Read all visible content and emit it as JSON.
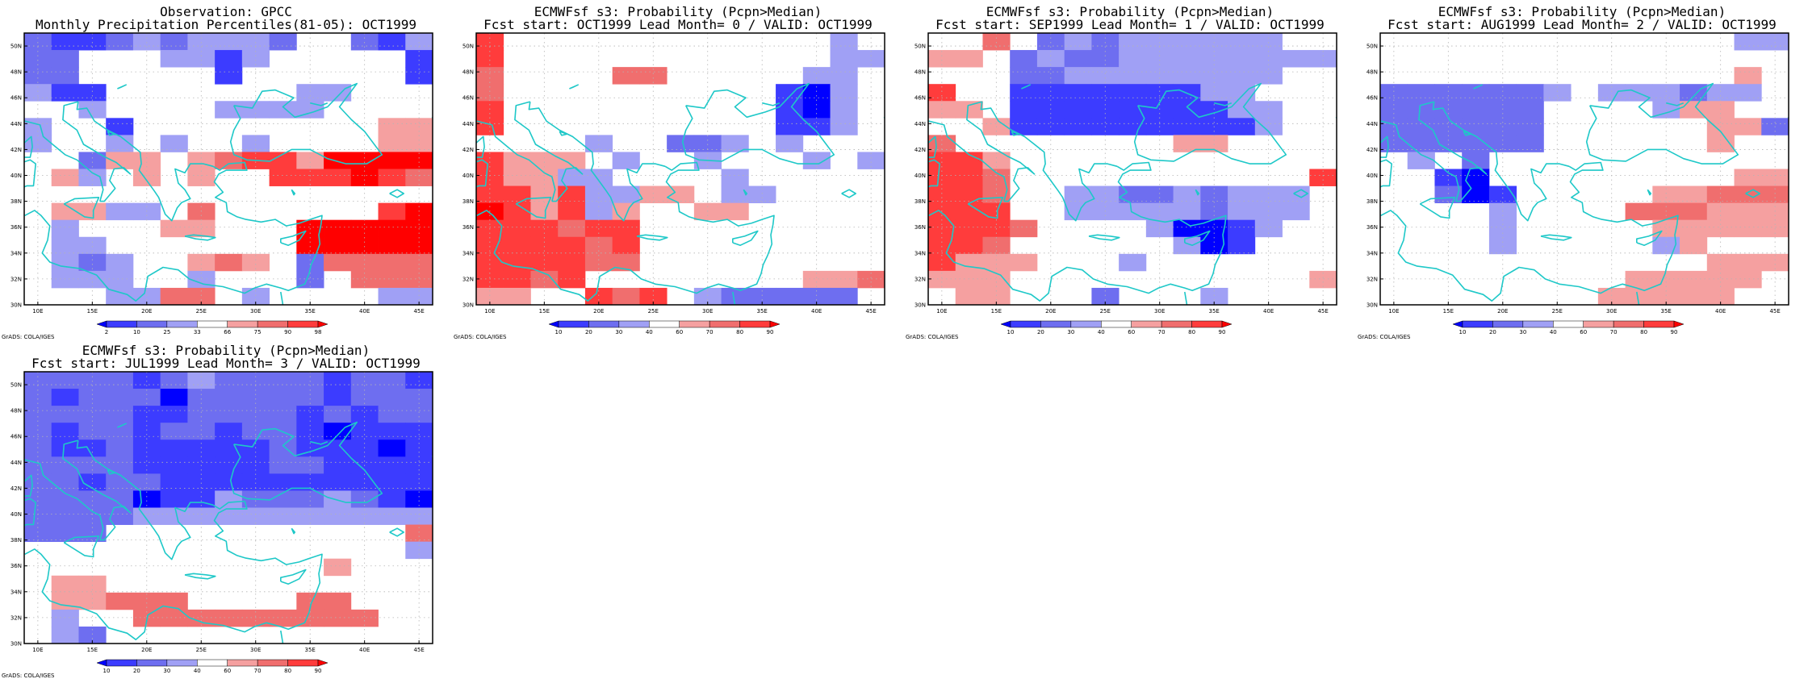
{
  "window": {
    "credit_label": "GrADS: COLA/IGES"
  },
  "axes": {
    "lat_labels": [
      "30N",
      "32N",
      "34N",
      "36N",
      "38N",
      "40N",
      "42N",
      "44N",
      "46N",
      "48N",
      "50N"
    ],
    "lon_labels": [
      "10E",
      "15E",
      "20E",
      "25E",
      "30E",
      "35E",
      "40E",
      "45E"
    ]
  },
  "colors": {
    "coast": "#1ec8c8",
    "gridline": "#b4b4b4",
    "palette": [
      "#0000ff",
      "#3c3cff",
      "#6e6ef0",
      "#a0a0f5",
      "#ffffff",
      "#f5a0a0",
      "#f06e6e",
      "#ff3c3c",
      "#ff0000"
    ]
  },
  "panels": [
    {
      "id": "observation",
      "title_line1": "Observation: GPCC",
      "title_line2": "Monthly Precipitation Percentiles(81-05): OCT1999",
      "colorbar_labels": [
        "2",
        "10",
        "25",
        "33",
        "66",
        "75",
        "90",
        "98"
      ],
      "grid": [
        "211232333244213",
        "224443313444441",
        "224444414444441",
        "311444444433444",
        "443444433334444",
        "344144444444455",
        "344343443444455",
        "442554567758888",
        "453454544777876",
        "444444444444444",
        "455334644444478",
        "434445544488888",
        "433444444488888",
        "432344565426666",
        "433344344424666",
        "444336643444433"
      ]
    },
    {
      "id": "lead0",
      "title_line1": "ECMWFsf s3: Probability (Pcpn>Median)",
      "title_line2": "Fcst start: OCT1999  Lead Month= 0 / VALID: OCT1999",
      "colorbar_labels": [
        "10",
        "20",
        "30",
        "40",
        "60",
        "70",
        "80",
        "90"
      ],
      "grid": [
        "744444444444434",
        "744444444444433",
        "644446644444334",
        "644444444441034",
        "744444444441034",
        "744444444441134",
        "444434422343444",
        "755543443444343",
        "755334444344444",
        "775733554334444",
        "875735445544444",
        "777677444444444",
        "777767444444444",
        "777766444444444",
        "776744444444556",
        "554476743222224"
      ]
    },
    {
      "id": "lead1",
      "title_line1": "ECMWFsf s3: Probability (Pcpn>Median)",
      "title_line2": "Fcst start: SEP1999  Lead Month= 1 / VALID: OCT1999",
      "colorbar_labels": [
        "10",
        "20",
        "30",
        "40",
        "60",
        "70",
        "80",
        "90"
      ],
      "grid": [
        "446423233333344",
        "554232233333333",
        "444223333333344",
        "744111111133444",
        "554111111113344",
        "445111111111344",
        "644444444554444",
        "775444444444444",
        "776444444444447",
        "776443322323334",
        "777443333323334",
        "777644443001344",
        "776444444301444",
        "755544434444444",
        "555444444444445",
        "455444244434444"
      ]
    },
    {
      "id": "lead2",
      "title_line1": "ECMWFsf s3: Probability (Pcpn>Median)",
      "title_line2": "Fcst start: AUG1999  Lead Month= 2 / VALID: OCT1999",
      "colorbar_labels": [
        "10",
        "20",
        "30",
        "40",
        "60",
        "70",
        "80",
        "90"
      ],
      "grid": [
        "444444444444433",
        "444444444444444",
        "444444444444454",
        "222222343332334",
        "222222444435544",
        "222222444444552",
        "222222444444544",
        "434244444444444",
        "441044444444455",
        "442014444455666",
        "444434444666555",
        "444434444455555",
        "444434444435444",
        "444444444444555",
        "444444444555554",
        "444444445555544"
      ]
    },
    {
      "id": "lead3",
      "title_line1": "ECMWFsf s3: Probability (Pcpn>Median)",
      "title_line2": "Fcst start: JUL1999  Lead Month= 3 / VALID: OCT1999",
      "colorbar_labels": [
        "10",
        "20",
        "30",
        "40",
        "60",
        "70",
        "80",
        "90"
      ],
      "grid": [
        "222212322221221",
        "212220222221222",
        "222211222212122",
        "212212212210111",
        "211211111211101",
        "222211111221111",
        "221221111111111",
        "222201132223210",
        "222233333333333",
        "222444444444446",
        "444444444444443",
        "444444444445444",
        "455444444444444",
        "455666444466444",
        "434466666666644",
        "432444444444444"
      ]
    }
  ]
}
